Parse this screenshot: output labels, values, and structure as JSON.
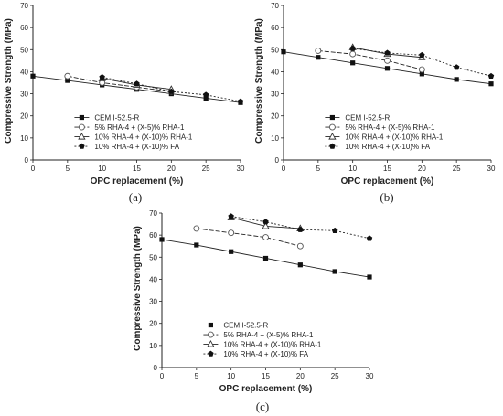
{
  "chart_data": [
    {
      "type": "line",
      "caption": "(a)",
      "xlabel": "OPC replacement (%)",
      "ylabel": "Compressive Strength (MPa)",
      "xlim": [
        0,
        30
      ],
      "ylim": [
        0,
        70
      ],
      "xticks": [
        0,
        5,
        10,
        15,
        20,
        25,
        30
      ],
      "yticks": [
        0,
        10,
        20,
        30,
        40,
        50,
        60,
        70
      ],
      "grid": false,
      "legend_position": "lower-left",
      "series": [
        {
          "name": "CEM I-52.5-R",
          "marker": "square",
          "dash": "solid",
          "x": [
            0,
            5,
            10,
            15,
            20,
            25,
            30
          ],
          "y": [
            38,
            36,
            34,
            32,
            30,
            28,
            26
          ]
        },
        {
          "name": "5% RHA-4 + (X-5)% RHA-1",
          "marker": "circle-open",
          "dash": "longdash",
          "x": [
            5,
            10,
            15,
            20
          ],
          "y": [
            38,
            35,
            33,
            31
          ]
        },
        {
          "name": "10% RHA-4 + (X-10)% RHA-1",
          "marker": "triangle-open",
          "dash": "solid",
          "x": [
            10,
            15,
            20
          ],
          "y": [
            37,
            34,
            32
          ]
        },
        {
          "name": "10% RHA-4 + (X-10)% FA",
          "marker": "pentagon",
          "dash": "dotted",
          "x": [
            10,
            15,
            20,
            25,
            30
          ],
          "y": [
            37.5,
            34.5,
            31,
            29.5,
            26.5
          ]
        }
      ]
    },
    {
      "type": "line",
      "caption": "(b)",
      "xlabel": "OPC replacement (%)",
      "ylabel": "Compressive Strength (MPa)",
      "xlim": [
        0,
        30
      ],
      "ylim": [
        0,
        70
      ],
      "xticks": [
        0,
        5,
        10,
        15,
        20,
        25,
        30
      ],
      "yticks": [
        0,
        10,
        20,
        30,
        40,
        50,
        60,
        70
      ],
      "grid": false,
      "legend_position": "lower-left",
      "series": [
        {
          "name": "CEM I-52.5-R",
          "marker": "square",
          "dash": "solid",
          "x": [
            0,
            5,
            10,
            15,
            20,
            25,
            30
          ],
          "y": [
            49,
            46.5,
            44,
            41.5,
            39,
            36.5,
            34.5
          ]
        },
        {
          "name": "5% RHA-4 + (X-5)% RHA-1",
          "marker": "circle-open",
          "dash": "longdash",
          "x": [
            5,
            10,
            15,
            20
          ],
          "y": [
            49.5,
            48,
            45,
            41
          ]
        },
        {
          "name": "10% RHA-4 + (X-10)% RHA-1",
          "marker": "triangle-open",
          "dash": "solid",
          "x": [
            10,
            15,
            20
          ],
          "y": [
            51,
            48,
            46.5
          ]
        },
        {
          "name": "10% RHA-4 + (X-10)% FA",
          "marker": "pentagon",
          "dash": "dotted",
          "x": [
            10,
            15,
            20,
            25,
            30
          ],
          "y": [
            50.5,
            48.5,
            47.5,
            42,
            38
          ]
        }
      ]
    },
    {
      "type": "line",
      "caption": "(c)",
      "xlabel": "OPC replacement (%)",
      "ylabel": "Compressive Strength (MPa)",
      "xlim": [
        0,
        30
      ],
      "ylim": [
        0,
        70
      ],
      "xticks": [
        0,
        5,
        10,
        15,
        20,
        25,
        30
      ],
      "yticks": [
        0,
        10,
        20,
        30,
        40,
        50,
        60,
        70
      ],
      "grid": false,
      "legend_position": "lower-left",
      "series": [
        {
          "name": "CEM I-52.5-R",
          "marker": "square",
          "dash": "solid",
          "x": [
            0,
            5,
            10,
            15,
            20,
            25,
            30
          ],
          "y": [
            58,
            55.5,
            52.5,
            49.5,
            46.5,
            43.5,
            41
          ]
        },
        {
          "name": "5% RHA-4 + (X-5)% RHA-1",
          "marker": "circle-open",
          "dash": "longdash",
          "x": [
            5,
            10,
            15,
            20
          ],
          "y": [
            63,
            61,
            59,
            55
          ]
        },
        {
          "name": "10% RHA-4 + (X-10)% RHA-1",
          "marker": "triangle-open",
          "dash": "solid",
          "x": [
            10,
            15,
            20
          ],
          "y": [
            68,
            64,
            63
          ]
        },
        {
          "name": "10% RHA-4 + (X-10)% FA",
          "marker": "pentagon",
          "dash": "dotted",
          "x": [
            10,
            15,
            20,
            25,
            30
          ],
          "y": [
            68.5,
            66,
            62.5,
            62,
            58.5
          ]
        }
      ]
    }
  ]
}
